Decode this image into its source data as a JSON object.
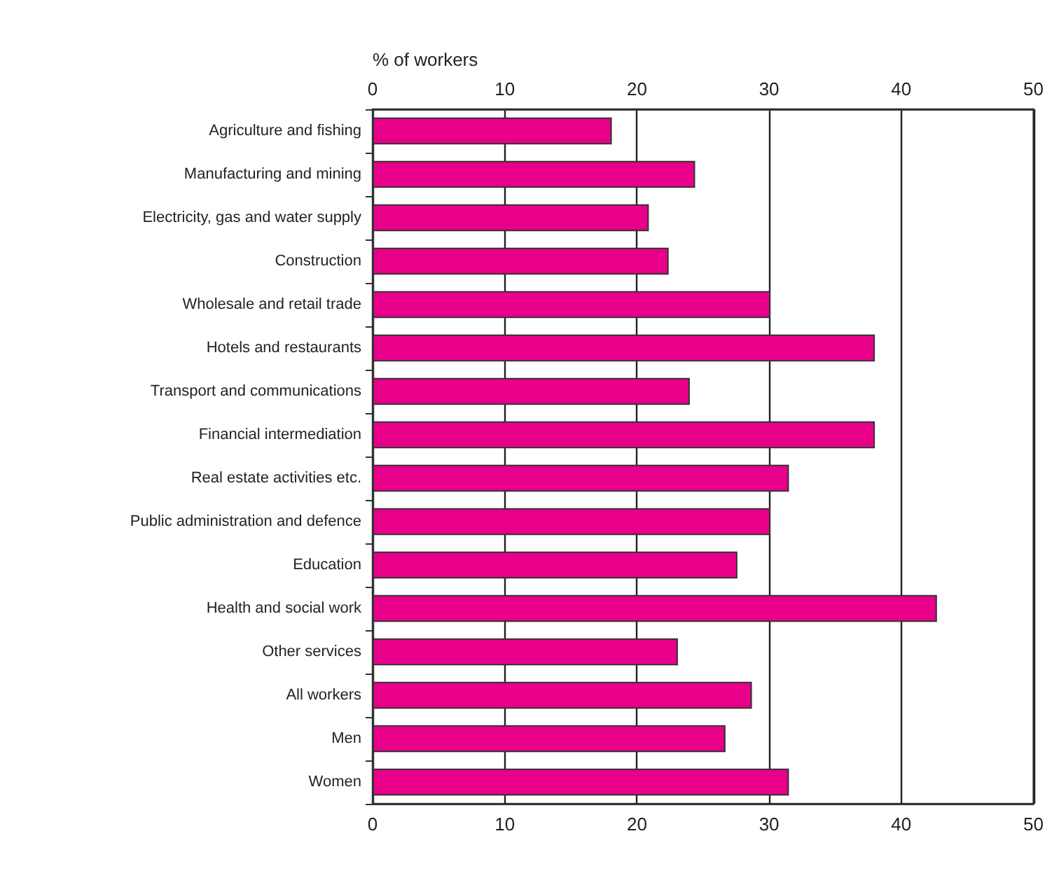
{
  "chart_data": {
    "type": "bar",
    "orientation": "horizontal",
    "x2label": "% of workers",
    "categories": [
      "Agriculture and fishing",
      "Manufacturing and mining",
      "Electricity, gas and water supply",
      "Construction",
      "Wholesale and retail trade",
      "Hotels and restaurants",
      "Transport and communications",
      "Financial intermediation",
      "Real estate activities etc.",
      "Public administration and defence",
      "Education",
      "Health and social work",
      "Other services",
      "All workers",
      "Men",
      "Women"
    ],
    "values": [
      18.1,
      24.4,
      20.9,
      22.4,
      30.1,
      38.0,
      24.0,
      38.0,
      31.5,
      30.1,
      27.6,
      42.7,
      23.1,
      28.7,
      26.7,
      31.5
    ],
    "color": "#e8008a",
    "xlim": [
      0,
      50
    ],
    "xticks": [
      0,
      10,
      20,
      30,
      40,
      50
    ],
    "x2lim": [
      0,
      50
    ],
    "x2ticks": [
      0,
      10,
      20,
      30,
      40,
      50
    ],
    "grid": "x"
  }
}
